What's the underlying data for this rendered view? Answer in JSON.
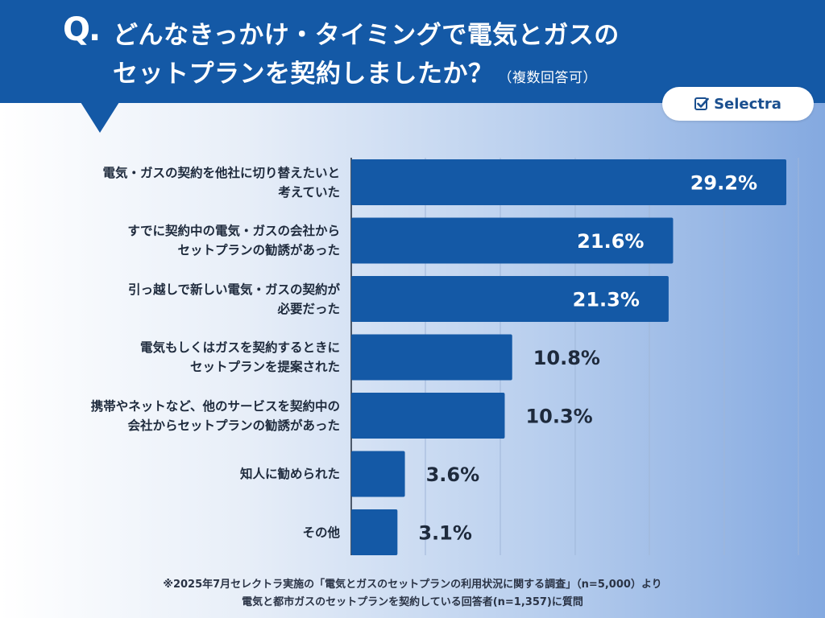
{
  "header": {
    "q_mark": "Q.",
    "line1": "どんなきっかけ・タイミングで電気とガスの",
    "line2": "セットプランを契約しましたか？",
    "note": "（複数回答可）"
  },
  "logo": {
    "text": "Selectra",
    "icon": "checkbox-check-icon",
    "brand_color": "#1459a6"
  },
  "chart_data": {
    "type": "bar",
    "orientation": "horizontal",
    "categories": [
      [
        "電気・ガスの契約を他社に切り替えたいと",
        "考えていた"
      ],
      [
        "すでに契約中の電気・ガスの会社から",
        "セットプランの勧誘があった"
      ],
      [
        "引っ越しで新しい電気・ガスの契約が",
        "必要だった"
      ],
      [
        "電気もしくはガスを契約するときに",
        "セットプランを提案された"
      ],
      [
        "携帯やネットなど、他のサービスを契約中の",
        "会社からセットプランの勧誘があった"
      ],
      [
        "知人に勧められた"
      ],
      [
        "その他"
      ]
    ],
    "values": [
      29.2,
      21.6,
      21.3,
      10.8,
      10.3,
      3.6,
      3.1
    ],
    "value_labels": [
      "29.2%",
      "21.6%",
      "21.3%",
      "10.8%",
      "10.3%",
      "3.6%",
      "3.1%"
    ],
    "xlim": [
      0,
      30
    ],
    "grid": true,
    "bar_color": "#1459a6"
  },
  "footnote": {
    "line1": "※2025年7月セレクトラ実施の「電気とガスのセットプランの利用状況に関する調査」（n=5,000）より",
    "line2": "電気と都市ガスのセットプランを契約している回答者(n=1,357)に質問"
  }
}
